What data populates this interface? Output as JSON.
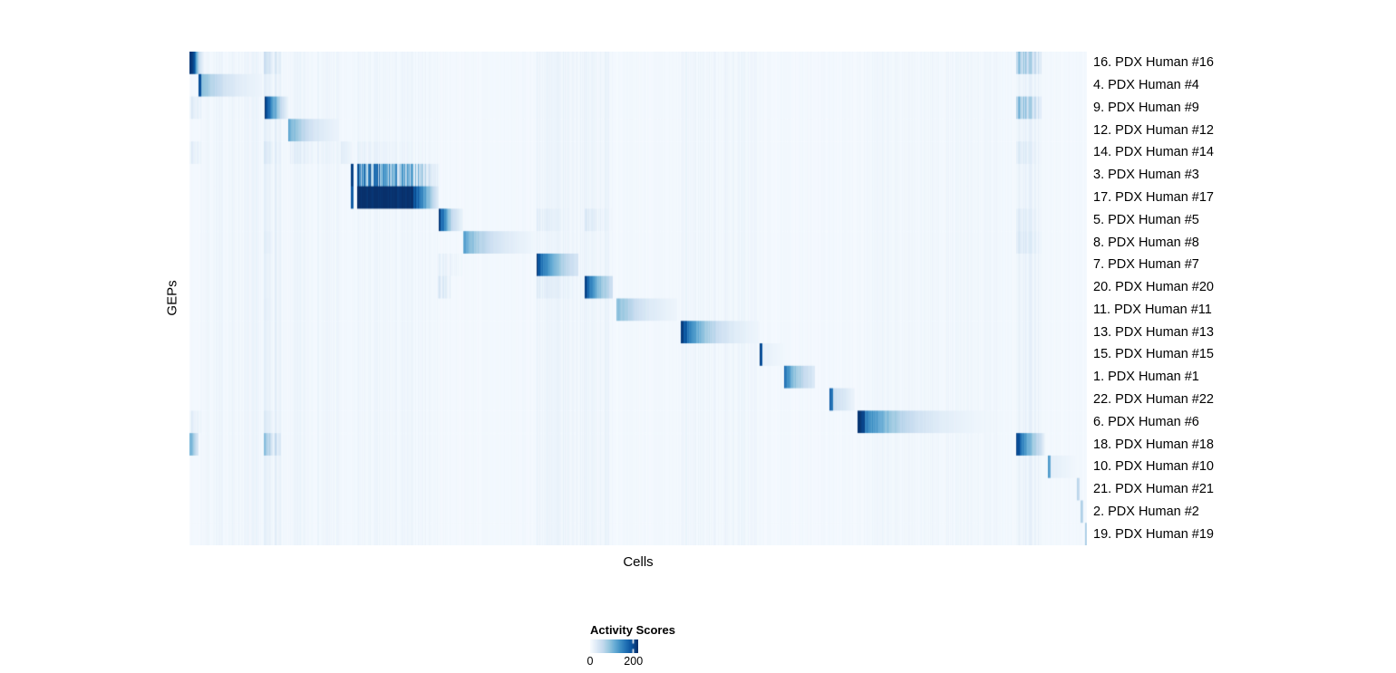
{
  "figure": {
    "x_axis_label": "Cells",
    "y_axis_label": "GEPs"
  },
  "legend": {
    "title": "Activity Scores",
    "tick_labels": [
      "0",
      "200"
    ],
    "tick_values": [
      0,
      200
    ],
    "scale_max": 222,
    "colormap": [
      "#F7FBFF",
      "#DEEBF7",
      "#C6DBEF",
      "#9ECAE1",
      "#6BAED6",
      "#4292C6",
      "#2171B5",
      "#08519C",
      "#08306B"
    ]
  },
  "chart_data": {
    "type": "heatmap",
    "title": "",
    "xlabel": "Cells",
    "ylabel": "GEPs",
    "value_label": "Activity Scores",
    "value_range": [
      0,
      222
    ],
    "legend_position": "bottom",
    "grid": false,
    "rows": [
      "16. PDX Human #16",
      "4. PDX Human #4",
      "9. PDX Human #9",
      "12. PDX Human #12",
      "14. PDX Human #14",
      "3. PDX Human #3",
      "17. PDX Human #17",
      "5. PDX Human #5",
      "8. PDX Human #8",
      "7. PDX Human #7",
      "20. PDX Human #20",
      "11. PDX Human #11",
      "13. PDX Human #13",
      "15. PDX Human #15",
      "1. PDX Human #1",
      "22. PDX Human #22",
      "6. PDX Human #6",
      "18. PDX Human #18",
      "10. PDX Human #10",
      "21. PDX Human #21",
      "2. PDX Human #2",
      "19. PDX Human #19"
    ],
    "blocks_format": [
      "row_index",
      "x0_fraction",
      "x1_fraction",
      "intensity_start",
      "intensity_end",
      "mode_s_solid_g_gradient_t_striped_T_strong_stripes",
      "exp_decay"
    ],
    "blocks": [
      [
        0,
        0.0,
        0.006,
        1.0,
        0.85,
        "s",
        0
      ],
      [
        0,
        0.006,
        0.016,
        0.75,
        0.06,
        "g",
        1
      ],
      [
        0,
        0.082,
        0.102,
        0.16,
        0.08,
        "t",
        0
      ],
      [
        0,
        0.922,
        0.95,
        0.32,
        0.14,
        "t",
        0
      ],
      [
        1,
        0.0095,
        0.0125,
        0.92,
        0.85,
        "s",
        0
      ],
      [
        1,
        0.013,
        0.08,
        0.45,
        0.05,
        "g",
        1
      ],
      [
        1,
        0.082,
        0.102,
        0.07,
        0.05,
        "t",
        0
      ],
      [
        2,
        0.083,
        0.101,
        0.95,
        0.28,
        "g",
        0
      ],
      [
        2,
        0.101,
        0.11,
        0.25,
        0.05,
        "g",
        0
      ],
      [
        2,
        0.0,
        0.013,
        0.1,
        0.06,
        "t",
        0
      ],
      [
        2,
        0.922,
        0.95,
        0.36,
        0.12,
        "t",
        0
      ],
      [
        3,
        0.11,
        0.166,
        0.52,
        0.06,
        "g",
        1
      ],
      [
        4,
        0.0,
        0.013,
        0.09,
        0.05,
        "t",
        0
      ],
      [
        4,
        0.082,
        0.102,
        0.11,
        0.06,
        "t",
        0
      ],
      [
        4,
        0.112,
        0.168,
        0.08,
        0.04,
        "t",
        0
      ],
      [
        4,
        0.168,
        0.18,
        0.11,
        0.05,
        "g",
        0
      ],
      [
        4,
        0.187,
        0.277,
        0.06,
        0.03,
        "t",
        0
      ],
      [
        4,
        0.922,
        0.95,
        0.11,
        0.05,
        "t",
        0
      ],
      [
        5,
        0.179,
        0.1825,
        0.95,
        0.9,
        "s",
        0
      ],
      [
        5,
        0.187,
        0.259,
        0.55,
        0.28,
        "T",
        0
      ],
      [
        5,
        0.259,
        0.278,
        0.22,
        0.06,
        "t",
        0
      ],
      [
        6,
        0.179,
        0.1825,
        0.85,
        0.8,
        "s",
        0
      ],
      [
        6,
        0.1865,
        0.248,
        1.0,
        0.98,
        "s",
        0
      ],
      [
        6,
        0.248,
        0.278,
        0.98,
        0.08,
        "g",
        0
      ],
      [
        7,
        0.2775,
        0.291,
        0.95,
        0.32,
        "g",
        0
      ],
      [
        7,
        0.291,
        0.305,
        0.28,
        0.05,
        "g",
        0
      ],
      [
        7,
        0.387,
        0.427,
        0.09,
        0.04,
        "t",
        0
      ],
      [
        7,
        0.44,
        0.472,
        0.11,
        0.04,
        "t",
        0
      ],
      [
        7,
        0.922,
        0.95,
        0.1,
        0.05,
        "t",
        0
      ],
      [
        8,
        0.305,
        0.372,
        0.55,
        0.07,
        "g",
        1
      ],
      [
        8,
        0.372,
        0.387,
        0.07,
        0.03,
        "g",
        0
      ],
      [
        8,
        0.082,
        0.102,
        0.08,
        0.05,
        "t",
        0
      ],
      [
        8,
        0.922,
        0.95,
        0.12,
        0.06,
        "t",
        0
      ],
      [
        9,
        0.3865,
        0.433,
        0.95,
        0.17,
        "g",
        1
      ],
      [
        9,
        0.277,
        0.305,
        0.07,
        0.03,
        "t",
        0
      ],
      [
        10,
        0.44,
        0.4715,
        0.95,
        0.22,
        "g",
        1
      ],
      [
        10,
        0.387,
        0.427,
        0.1,
        0.05,
        "t",
        0
      ],
      [
        10,
        0.277,
        0.291,
        0.13,
        0.06,
        "t",
        0
      ],
      [
        11,
        0.476,
        0.543,
        0.46,
        0.05,
        "g",
        1
      ],
      [
        11,
        0.082,
        0.102,
        0.07,
        0.04,
        "t",
        0
      ],
      [
        12,
        0.548,
        0.634,
        0.95,
        0.05,
        "g",
        1
      ],
      [
        13,
        0.6355,
        0.639,
        0.92,
        0.85,
        "s",
        0
      ],
      [
        13,
        0.639,
        0.663,
        0.09,
        0.03,
        "g",
        0
      ],
      [
        14,
        0.663,
        0.697,
        0.73,
        0.14,
        "g",
        1
      ],
      [
        15,
        0.7135,
        0.717,
        0.82,
        0.7,
        "s",
        0
      ],
      [
        15,
        0.717,
        0.742,
        0.24,
        0.05,
        "g",
        0
      ],
      [
        16,
        0.745,
        0.7525,
        1.0,
        0.92,
        "s",
        0
      ],
      [
        16,
        0.7525,
        0.918,
        0.72,
        0.02,
        "g",
        1
      ],
      [
        16,
        0.0,
        0.013,
        0.09,
        0.04,
        "t",
        0
      ],
      [
        16,
        0.082,
        0.102,
        0.1,
        0.05,
        "t",
        0
      ],
      [
        17,
        0.9215,
        0.95,
        1.0,
        0.22,
        "g",
        1
      ],
      [
        17,
        0.95,
        0.9535,
        0.18,
        0.06,
        "g",
        0
      ],
      [
        17,
        0.0,
        0.0095,
        0.52,
        0.14,
        "g",
        0
      ],
      [
        17,
        0.082,
        0.102,
        0.3,
        0.1,
        "t",
        0
      ],
      [
        18,
        0.9575,
        0.9605,
        0.62,
        0.45,
        "s",
        0
      ],
      [
        18,
        0.9605,
        0.988,
        0.1,
        0.03,
        "g",
        0
      ],
      [
        19,
        0.9895,
        0.9925,
        0.3,
        0.22,
        "s",
        0
      ],
      [
        20,
        0.9935,
        0.9965,
        0.34,
        0.26,
        "s",
        0
      ],
      [
        21,
        0.998,
        1.0,
        0.4,
        0.28,
        "s",
        0
      ]
    ],
    "bg_bands": [
      {
        "x0": 0.013,
        "x1": 0.08,
        "amp": 0.02
      },
      {
        "x0": 0.082,
        "x1": 0.102,
        "amp": 0.05
      },
      {
        "x0": 0.112,
        "x1": 0.168,
        "amp": 0.02
      },
      {
        "x0": 0.187,
        "x1": 0.277,
        "amp": 0.015
      },
      {
        "x0": 0.387,
        "x1": 0.472,
        "amp": 0.03
      },
      {
        "x0": 0.548,
        "x1": 0.634,
        "amp": 0.02
      },
      {
        "x0": 0.745,
        "x1": 0.917,
        "amp": 0.012
      },
      {
        "x0": 0.922,
        "x1": 0.95,
        "amp": 0.04
      }
    ]
  }
}
